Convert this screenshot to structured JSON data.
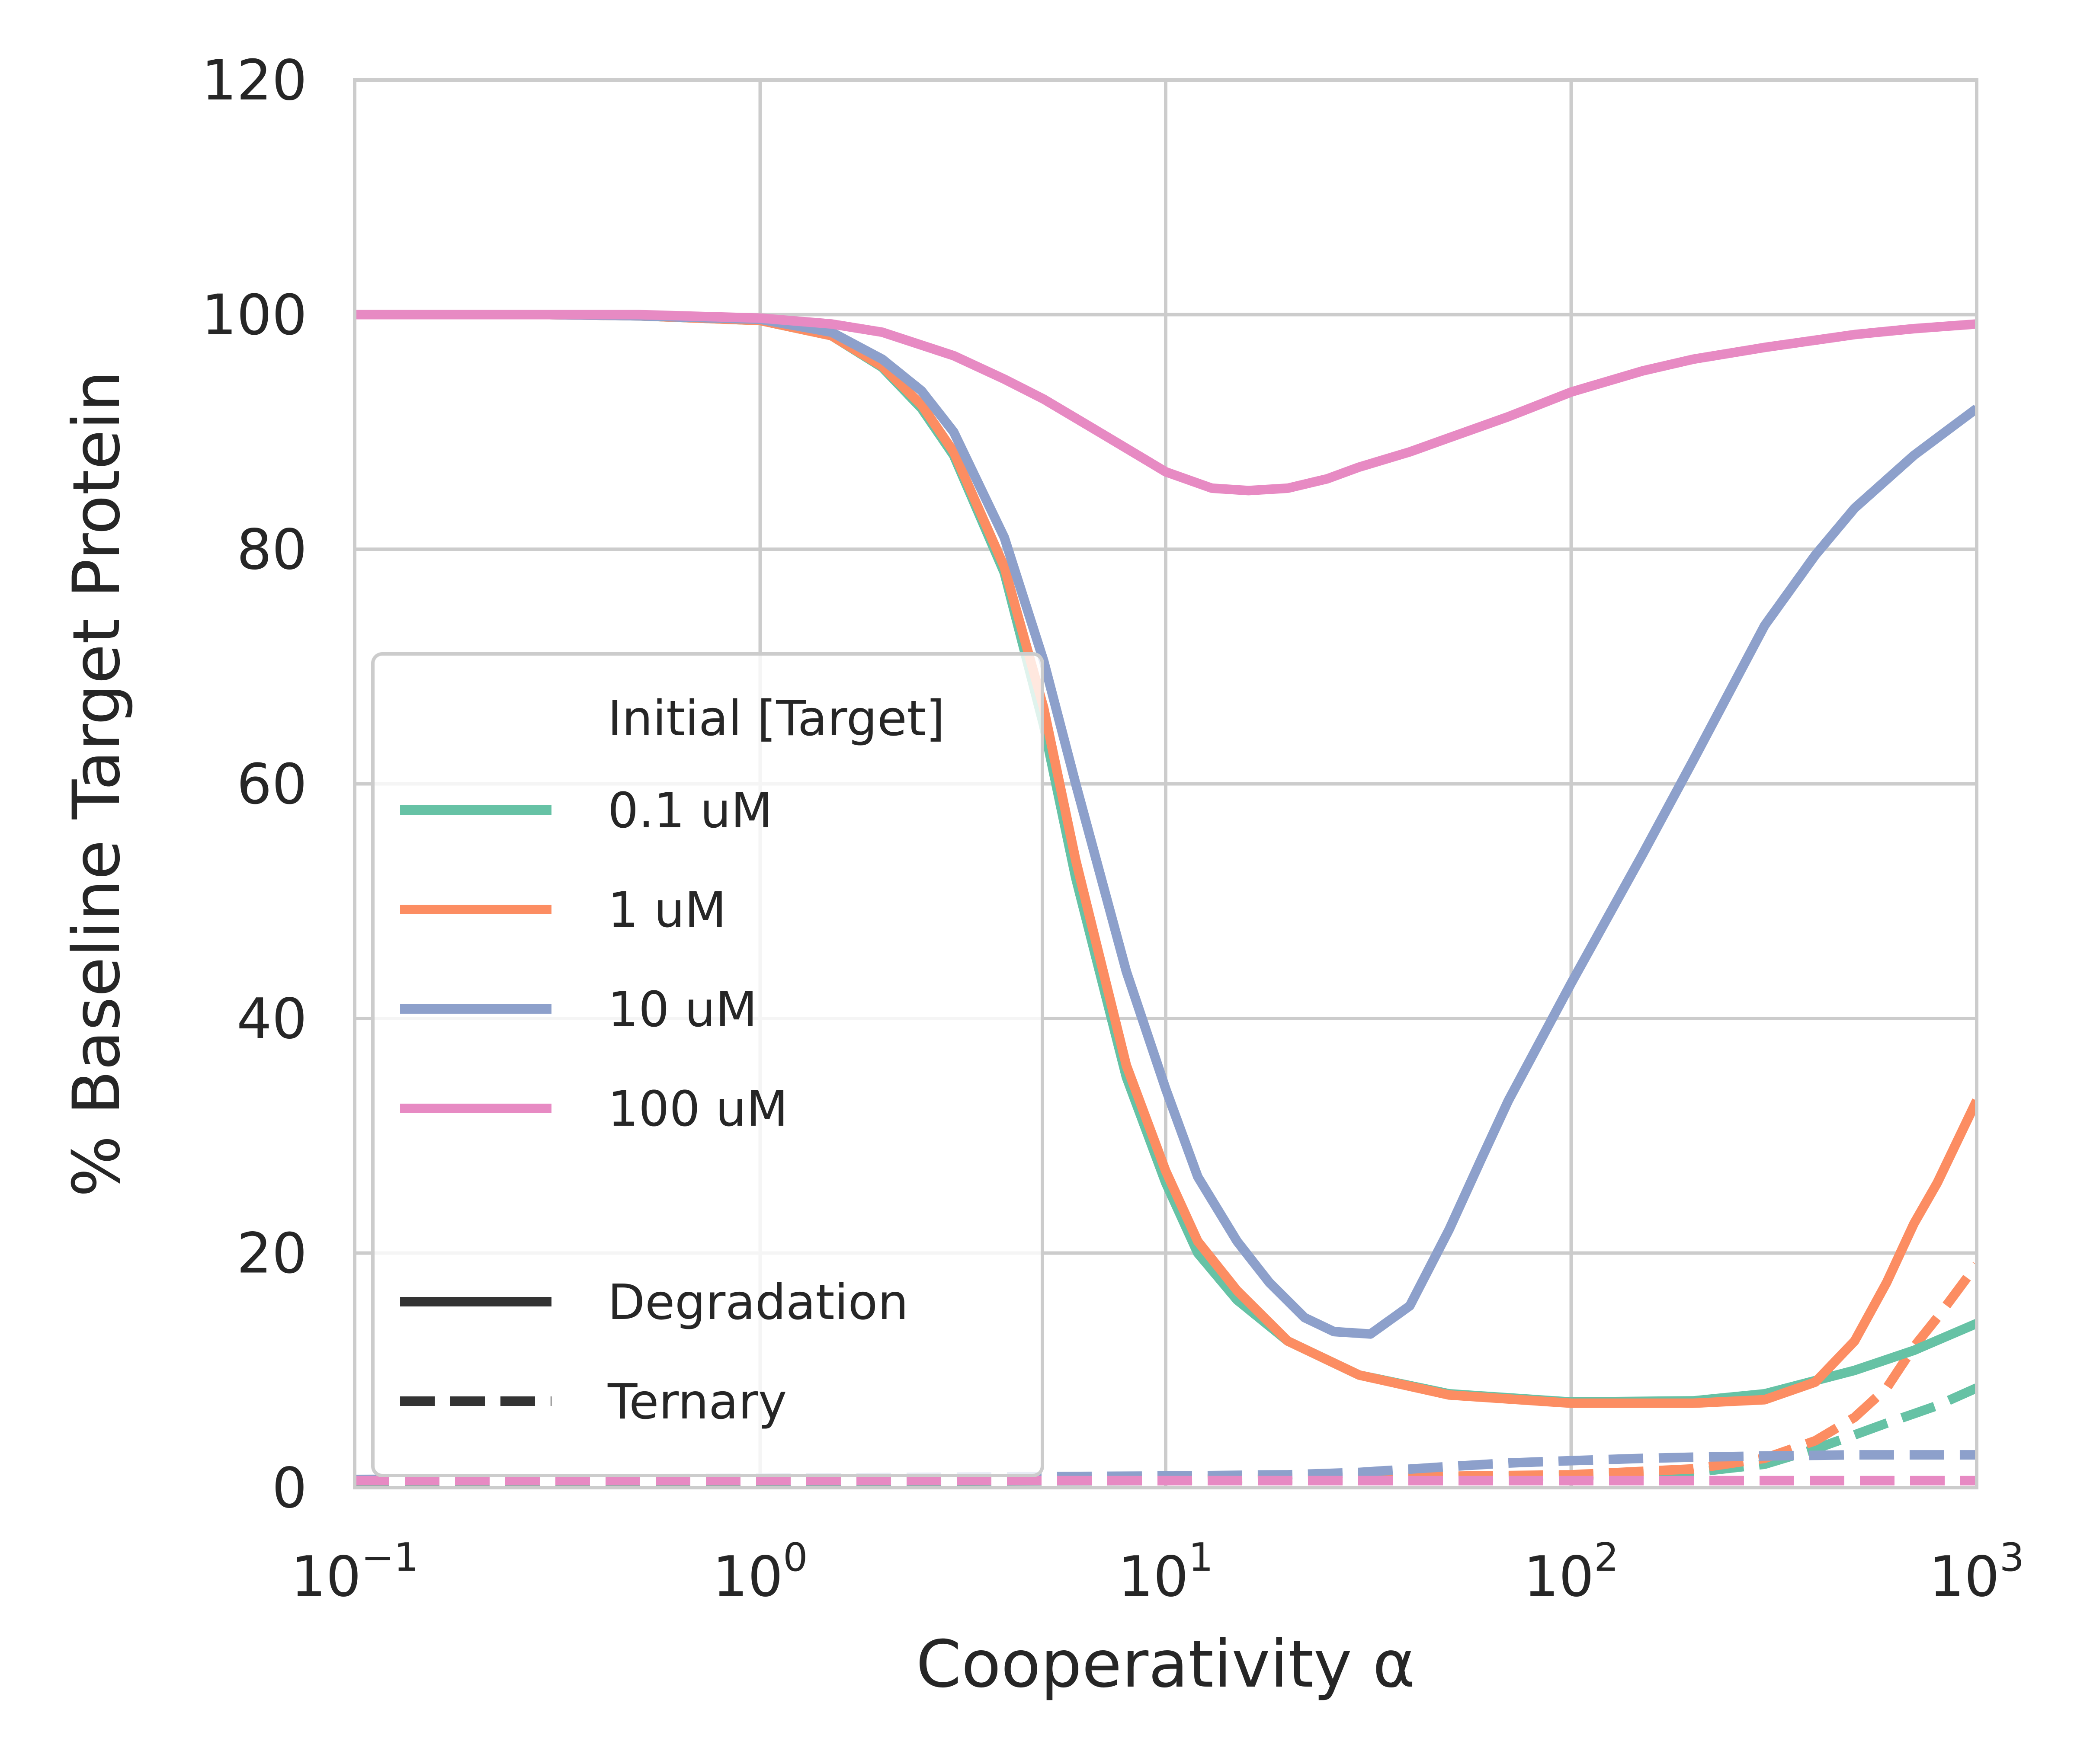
{
  "chart_data": {
    "type": "line",
    "xlabel": "Cooperativity α",
    "ylabel": "% Baseline Target Protein",
    "x_scale": "log",
    "xlim": [
      0.1,
      1000
    ],
    "ylim": [
      0,
      120
    ],
    "xticks": [
      {
        "value": 0.1,
        "base": "10",
        "exp": "−1"
      },
      {
        "value": 1,
        "base": "10",
        "exp": "0"
      },
      {
        "value": 10,
        "base": "10",
        "exp": "1"
      },
      {
        "value": 100,
        "base": "10",
        "exp": "2"
      },
      {
        "value": 1000,
        "base": "10",
        "exp": "3"
      }
    ],
    "yticks": [
      0,
      20,
      40,
      60,
      80,
      100,
      120
    ],
    "grid": true,
    "legend_position": "center-left",
    "legend": {
      "title": "Initial [Target]",
      "entries": [
        "0.1 uM",
        "1 uM",
        "10 uM",
        "100 uM"
      ],
      "style_entries": [
        {
          "label": "Degradation",
          "dash": "solid"
        },
        {
          "label": "Ternary",
          "dash": "dashed"
        }
      ]
    },
    "series": [
      {
        "name": "0.1 uM",
        "kind": "Degradation",
        "color": "#66c2a5",
        "x": [
          0.1,
          0.3,
          0.5,
          1,
          1.5,
          2,
          2.5,
          3,
          4,
          5,
          6,
          8,
          10,
          12,
          15,
          20,
          30,
          50,
          100,
          200,
          300,
          500,
          700,
          1000
        ],
        "y": [
          100,
          100,
          99.9,
          99.5,
          98.2,
          95.5,
          92,
          88,
          78,
          65,
          52,
          35,
          26,
          20,
          16,
          12.5,
          9.6,
          8,
          7.3,
          7.4,
          8,
          10,
          11.7,
          14
        ]
      },
      {
        "name": "1 uM",
        "kind": "Degradation",
        "color": "#fc8d62",
        "x": [
          0.1,
          0.3,
          0.5,
          1,
          1.5,
          2,
          2.5,
          3,
          4,
          5,
          6,
          8,
          10,
          12,
          15,
          20,
          30,
          50,
          100,
          200,
          300,
          400,
          500,
          600,
          700,
          800,
          1000
        ],
        "y": [
          100,
          100,
          99.9,
          99.5,
          98.2,
          95.6,
          92.3,
          88.3,
          78.5,
          66.5,
          53.5,
          36,
          27,
          21,
          16.8,
          12.5,
          9.6,
          7.9,
          7.2,
          7.2,
          7.5,
          9,
          12.5,
          17.5,
          22.5,
          26,
          33
        ]
      },
      {
        "name": "10 uM",
        "kind": "Degradation",
        "color": "#8da0cb",
        "x": [
          0.1,
          0.3,
          0.5,
          1,
          1.5,
          2,
          2.5,
          3,
          4,
          5,
          6,
          8,
          10,
          12,
          15,
          18,
          22,
          26,
          32,
          40,
          50,
          60,
          70,
          100,
          150,
          200,
          300,
          400,
          500,
          700,
          1000
        ],
        "y": [
          100,
          100,
          99.9,
          99.6,
          98.5,
          96.2,
          93.5,
          90,
          81,
          70.5,
          60,
          44,
          34,
          26.5,
          21,
          17.5,
          14.5,
          13.3,
          13.1,
          15.5,
          22,
          28,
          33,
          43,
          54,
          62,
          73.5,
          79.5,
          83.5,
          88,
          92
        ]
      },
      {
        "name": "100 uM",
        "kind": "Degradation",
        "color": "#e78ac3",
        "x": [
          0.1,
          0.3,
          0.5,
          1,
          1.5,
          2,
          3,
          4,
          5,
          7,
          10,
          13,
          16,
          20,
          25,
          30,
          40,
          50,
          70,
          100,
          150,
          200,
          300,
          500,
          700,
          1000
        ],
        "y": [
          100,
          100,
          100,
          99.7,
          99.2,
          98.5,
          96.5,
          94.5,
          92.8,
          89.8,
          86.6,
          85.2,
          85,
          85.2,
          86,
          87,
          88.3,
          89.5,
          91.3,
          93.4,
          95.2,
          96.2,
          97.2,
          98.3,
          98.8,
          99.2
        ]
      },
      {
        "name": "0.1 uM",
        "kind": "Ternary",
        "color": "#66c2a5",
        "x": [
          0.1,
          1,
          10,
          100,
          200,
          300,
          400,
          500,
          600,
          700,
          800,
          1000
        ],
        "y": [
          0.5,
          0.5,
          0.6,
          1,
          1.3,
          2,
          3.3,
          4.5,
          5.5,
          6.3,
          7,
          8.5
        ]
      },
      {
        "name": "1 uM",
        "kind": "Ternary",
        "color": "#fc8d62",
        "x": [
          0.1,
          1,
          10,
          100,
          200,
          300,
          400,
          500,
          600,
          700,
          800,
          1000
        ],
        "y": [
          0.6,
          0.6,
          0.7,
          1.1,
          1.6,
          2.5,
          4,
          6,
          8.5,
          12,
          14.5,
          19
        ]
      },
      {
        "name": "10 uM",
        "kind": "Ternary",
        "color": "#8da0cb",
        "x": [
          0.1,
          1,
          3,
          10,
          20,
          30,
          50,
          70,
          100,
          150,
          200,
          300,
          500,
          700,
          1000
        ],
        "y": [
          0.7,
          0.8,
          0.9,
          1,
          1.1,
          1.3,
          1.8,
          2.1,
          2.3,
          2.5,
          2.6,
          2.7,
          2.8,
          2.8,
          2.8
        ]
      },
      {
        "name": "100 uM",
        "kind": "Ternary",
        "color": "#e78ac3",
        "x": [
          0.1,
          1,
          10,
          100,
          1000
        ],
        "y": [
          0.6,
          0.6,
          0.6,
          0.6,
          0.6
        ]
      }
    ]
  }
}
